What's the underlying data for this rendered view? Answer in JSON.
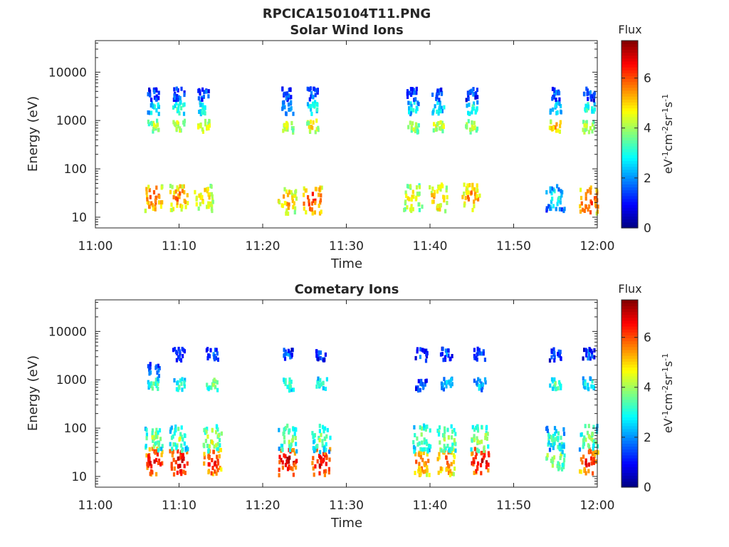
{
  "figure": {
    "title": "RPCICA150104T11.PNG"
  },
  "chart_data": [
    {
      "type": "heatmap",
      "title": "Solar Wind Ions",
      "xlabel": "Time",
      "ylabel": "Energy (eV)",
      "x_ticks": [
        "11:00",
        "11:10",
        "11:20",
        "11:30",
        "11:40",
        "11:50",
        "12:00"
      ],
      "x_range": [
        "11:00",
        "12:00"
      ],
      "y_scale": "log",
      "y_ticks": [
        "10",
        "100",
        "1000",
        "10000"
      ],
      "ylim": [
        6,
        45000
      ],
      "colorbar": {
        "title": "Flux",
        "label": "eV-1cm-2sr-1s-1",
        "ticks": [
          "0",
          "2",
          "4",
          "6"
        ],
        "range": [
          0,
          7.5
        ],
        "colormap": "jet"
      },
      "bursts": [
        {
          "time": "11:07",
          "components": [
            {
              "energy": 25,
              "flux": 6.2
            },
            {
              "energy": 750,
              "flux": 4.3
            },
            {
              "energy": 1800,
              "flux": 3.0
            },
            {
              "energy": 3500,
              "flux": 1.8
            }
          ]
        },
        {
          "time": "11:10",
          "components": [
            {
              "energy": 25,
              "flux": 6.0
            },
            {
              "energy": 800,
              "flux": 4.6
            },
            {
              "energy": 1800,
              "flux": 3.4
            },
            {
              "energy": 3500,
              "flux": 2.0
            }
          ]
        },
        {
          "time": "11:13",
          "components": [
            {
              "energy": 25,
              "flux": 5.4
            },
            {
              "energy": 750,
              "flux": 4.7
            },
            {
              "energy": 1800,
              "flux": 3.3
            },
            {
              "energy": 3500,
              "flux": 2.0
            }
          ]
        },
        {
          "time": "11:23",
          "components": [
            {
              "energy": 22,
              "flux": 5.6
            },
            {
              "energy": 750,
              "flux": 4.6
            },
            {
              "energy": 1800,
              "flux": 2.6
            },
            {
              "energy": 3500,
              "flux": 1.8
            }
          ]
        },
        {
          "time": "11:26",
          "components": [
            {
              "energy": 22,
              "flux": 6.4
            },
            {
              "energy": 750,
              "flux": 4.9
            },
            {
              "energy": 1800,
              "flux": 3.3
            },
            {
              "energy": 3500,
              "flux": 2.0
            }
          ]
        },
        {
          "time": "11:38",
          "components": [
            {
              "energy": 25,
              "flux": 5.2
            },
            {
              "energy": 750,
              "flux": 4.4
            },
            {
              "energy": 1800,
              "flux": 3.0
            },
            {
              "energy": 3500,
              "flux": 1.8
            }
          ]
        },
        {
          "time": "11:41",
          "components": [
            {
              "energy": 25,
              "flux": 5.6
            },
            {
              "energy": 750,
              "flux": 4.7
            },
            {
              "energy": 1800,
              "flux": 3.0
            },
            {
              "energy": 3500,
              "flux": 1.8
            }
          ]
        },
        {
          "time": "11:45",
          "components": [
            {
              "energy": 25,
              "flux": 5.8
            },
            {
              "energy": 750,
              "flux": 4.6
            },
            {
              "energy": 1800,
              "flux": 3.2
            },
            {
              "energy": 3500,
              "flux": 1.8
            }
          ]
        },
        {
          "time": "11:55",
          "components": [
            {
              "energy": 25,
              "flux": 3.2
            },
            {
              "energy": 750,
              "flux": 5.4
            },
            {
              "energy": 1800,
              "flux": 2.8
            },
            {
              "energy": 3500,
              "flux": 1.8
            }
          ]
        },
        {
          "time": "11:59",
          "components": [
            {
              "energy": 22,
              "flux": 6.6
            },
            {
              "energy": 750,
              "flux": 4.6
            },
            {
              "energy": 1800,
              "flux": 3.4
            },
            {
              "energy": 3500,
              "flux": 1.8
            }
          ]
        }
      ]
    },
    {
      "type": "heatmap",
      "title": "Cometary Ions",
      "xlabel": "Time",
      "ylabel": "Energy (eV)",
      "x_ticks": [
        "11:00",
        "11:10",
        "11:20",
        "11:30",
        "11:40",
        "11:50",
        "12:00"
      ],
      "x_range": [
        "11:00",
        "12:00"
      ],
      "y_scale": "log",
      "y_ticks": [
        "10",
        "100",
        "1000",
        "10000"
      ],
      "ylim": [
        6,
        45000
      ],
      "colorbar": {
        "title": "Flux",
        "label": "eV-1cm-2sr-1s-1",
        "ticks": [
          "0",
          "2",
          "4",
          "6"
        ],
        "range": [
          0,
          7.5
        ],
        "colormap": "jet"
      },
      "bursts": [
        {
          "time": "11:07",
          "components": [
            {
              "energy": 20,
              "flux": 7.0
            },
            {
              "energy": 60,
              "flux": 4.2
            },
            {
              "energy": 800,
              "flux": 3.6
            },
            {
              "energy": 1600,
              "flux": 2.2
            }
          ]
        },
        {
          "time": "11:10",
          "components": [
            {
              "energy": 20,
              "flux": 7.0
            },
            {
              "energy": 60,
              "flux": 4.2
            },
            {
              "energy": 800,
              "flux": 3.4
            },
            {
              "energy": 3300,
              "flux": 1.8
            }
          ]
        },
        {
          "time": "11:14",
          "components": [
            {
              "energy": 20,
              "flux": 6.6
            },
            {
              "energy": 60,
              "flux": 4.6
            },
            {
              "energy": 800,
              "flux": 4.0
            },
            {
              "energy": 3300,
              "flux": 1.8
            }
          ]
        },
        {
          "time": "11:23",
          "components": [
            {
              "energy": 20,
              "flux": 7.2
            },
            {
              "energy": 60,
              "flux": 4.2
            },
            {
              "energy": 800,
              "flux": 3.6
            },
            {
              "energy": 3300,
              "flux": 1.8
            }
          ]
        },
        {
          "time": "11:27",
          "components": [
            {
              "energy": 20,
              "flux": 7.0
            },
            {
              "energy": 60,
              "flux": 4.0
            },
            {
              "energy": 800,
              "flux": 3.4
            },
            {
              "energy": 3300,
              "flux": 1.8
            }
          ]
        },
        {
          "time": "11:39",
          "components": [
            {
              "energy": 20,
              "flux": 6.0
            },
            {
              "energy": 60,
              "flux": 4.2
            },
            {
              "energy": 800,
              "flux": 2.0
            },
            {
              "energy": 3300,
              "flux": 1.8
            }
          ]
        },
        {
          "time": "11:42",
          "components": [
            {
              "energy": 20,
              "flux": 6.2
            },
            {
              "energy": 60,
              "flux": 4.4
            },
            {
              "energy": 800,
              "flux": 2.8
            },
            {
              "energy": 3300,
              "flux": 1.8
            }
          ]
        },
        {
          "time": "11:46",
          "components": [
            {
              "energy": 20,
              "flux": 7.2
            },
            {
              "energy": 60,
              "flux": 4.6
            },
            {
              "energy": 800,
              "flux": 2.6
            },
            {
              "energy": 3300,
              "flux": 1.8
            }
          ]
        },
        {
          "time": "11:55",
          "components": [
            {
              "energy": 25,
              "flux": 4.6
            },
            {
              "energy": 60,
              "flux": 3.6
            },
            {
              "energy": 800,
              "flux": 3.6
            },
            {
              "energy": 3300,
              "flux": 1.8
            }
          ]
        },
        {
          "time": "11:59",
          "components": [
            {
              "energy": 20,
              "flux": 6.8
            },
            {
              "energy": 60,
              "flux": 4.2
            },
            {
              "energy": 800,
              "flux": 3.2
            },
            {
              "energy": 3300,
              "flux": 1.8
            }
          ]
        }
      ]
    }
  ]
}
